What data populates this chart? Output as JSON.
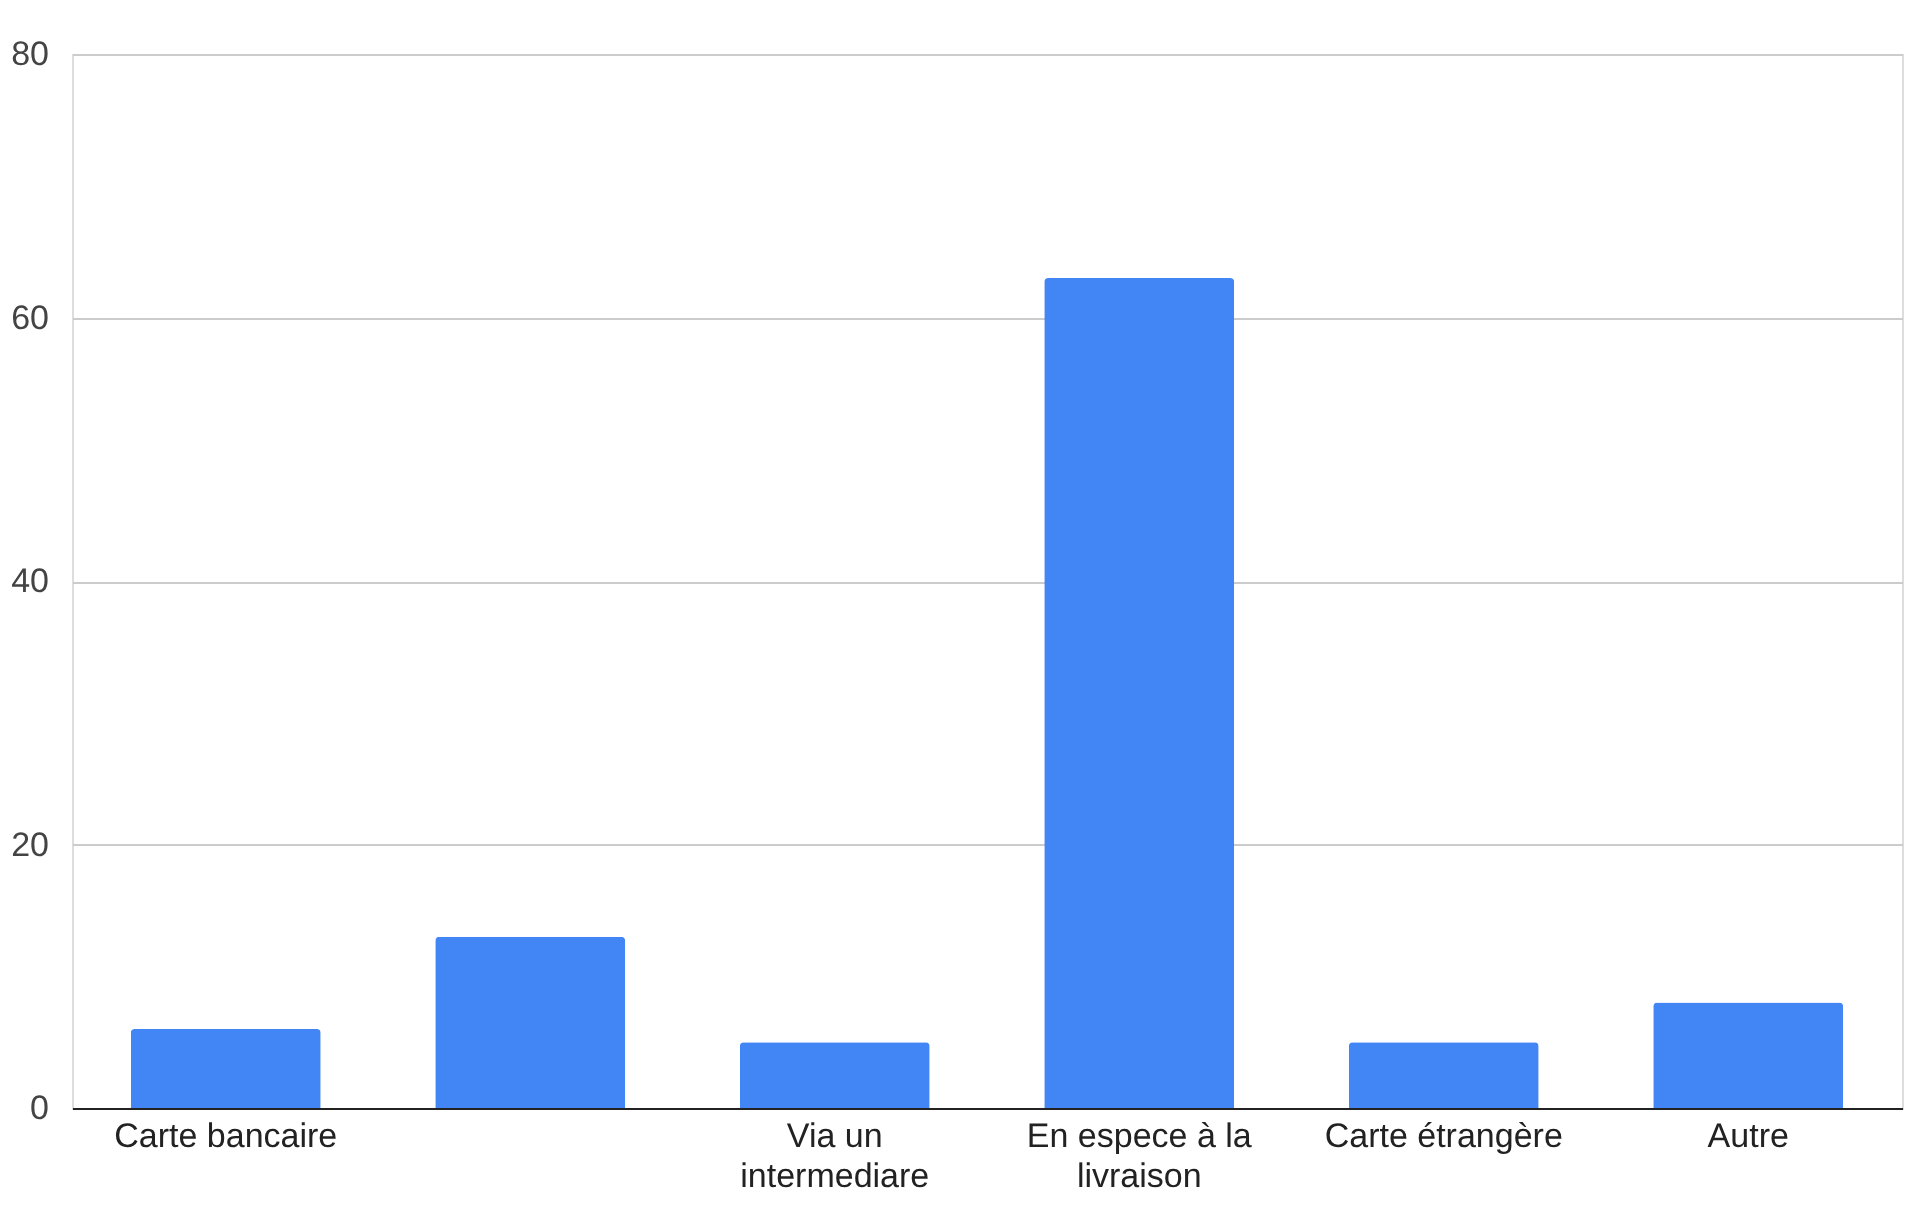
{
  "chart_data": {
    "type": "bar",
    "categories": [
      "Carte bancaire",
      null,
      "Via un intermediare",
      "En espece à la livraison",
      "Carte étrangère",
      "Autre"
    ],
    "values": [
      6,
      13,
      5,
      63,
      5,
      8
    ],
    "color": "#4285f4",
    "ylim": [
      0,
      80
    ],
    "yticks": [
      0,
      20,
      40,
      60,
      80
    ],
    "grid": "y"
  }
}
